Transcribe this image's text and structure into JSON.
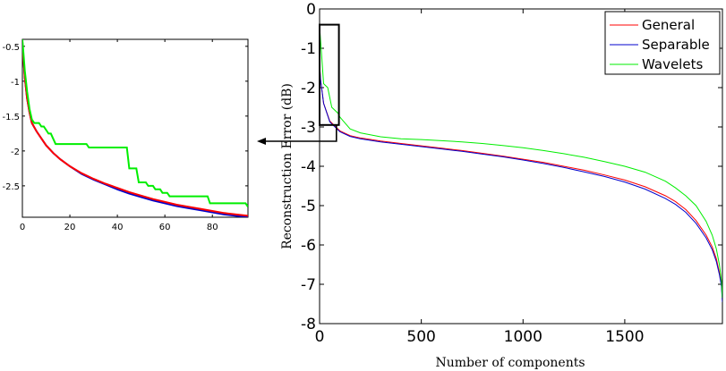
{
  "chart_data": [
    {
      "type": "line",
      "title": "",
      "xlabel": "Number of components",
      "ylabel": "Reconstruction Error (dB)",
      "xlim": [
        0,
        1980
      ],
      "ylim": [
        -8,
        0
      ],
      "xticks": [
        0,
        500,
        1000,
        1500
      ],
      "yticks": [
        0,
        -1,
        -2,
        -3,
        -4,
        -5,
        -6,
        -7,
        -8
      ],
      "legend": "top-right",
      "series": [
        {
          "name": "General",
          "color": "#ff0000",
          "x": [
            0,
            5,
            20,
            50,
            100,
            150,
            200,
            300,
            400,
            500,
            600,
            700,
            800,
            900,
            1000,
            1100,
            1200,
            1300,
            1400,
            1500,
            1600,
            1700,
            1750,
            1800,
            1850,
            1900,
            1930,
            1950,
            1965,
            1975,
            1980
          ],
          "y": [
            -1.4,
            -1.8,
            -2.4,
            -2.85,
            -3.1,
            -3.22,
            -3.28,
            -3.36,
            -3.42,
            -3.48,
            -3.54,
            -3.6,
            -3.67,
            -3.74,
            -3.82,
            -3.9,
            -4.0,
            -4.1,
            -4.22,
            -4.35,
            -4.52,
            -4.75,
            -4.9,
            -5.1,
            -5.38,
            -5.75,
            -6.05,
            -6.35,
            -6.7,
            -7.0,
            -7.4
          ]
        },
        {
          "name": "Separable",
          "color": "#0000cc",
          "x": [
            0,
            5,
            20,
            50,
            100,
            150,
            200,
            300,
            400,
            500,
            600,
            700,
            800,
            900,
            1000,
            1100,
            1200,
            1300,
            1400,
            1500,
            1600,
            1700,
            1750,
            1800,
            1850,
            1900,
            1930,
            1950,
            1965,
            1975,
            1980
          ],
          "y": [
            -1.4,
            -1.8,
            -2.4,
            -2.87,
            -3.12,
            -3.24,
            -3.3,
            -3.38,
            -3.44,
            -3.5,
            -3.56,
            -3.62,
            -3.69,
            -3.76,
            -3.84,
            -3.93,
            -4.03,
            -4.14,
            -4.26,
            -4.4,
            -4.58,
            -4.82,
            -4.97,
            -5.17,
            -5.45,
            -5.82,
            -6.12,
            -6.42,
            -6.75,
            -7.05,
            -7.45
          ]
        },
        {
          "name": "Wavelets",
          "color": "#00ee00",
          "x": [
            0,
            1,
            20,
            40,
            60,
            90,
            100,
            150,
            200,
            300,
            400,
            500,
            600,
            700,
            800,
            900,
            1000,
            1100,
            1200,
            1300,
            1400,
            1500,
            1600,
            1700,
            1750,
            1800,
            1850,
            1900,
            1930,
            1950,
            1965,
            1975,
            1980
          ],
          "y": [
            -0.4,
            -0.5,
            -1.9,
            -2.0,
            -2.5,
            -2.65,
            -2.75,
            -3.05,
            -3.15,
            -3.25,
            -3.3,
            -3.32,
            -3.35,
            -3.38,
            -3.42,
            -3.47,
            -3.53,
            -3.6,
            -3.68,
            -3.77,
            -3.88,
            -4.0,
            -4.15,
            -4.38,
            -4.55,
            -4.75,
            -5.0,
            -5.4,
            -5.75,
            -6.1,
            -6.5,
            -6.9,
            -7.35
          ]
        }
      ]
    },
    {
      "type": "line",
      "title": "",
      "xlabel": "",
      "ylabel": "",
      "xlim": [
        0,
        95
      ],
      "ylim": [
        -2.95,
        -0.4
      ],
      "xticks": [
        0,
        20,
        40,
        60,
        80
      ],
      "yticks": [
        -0.5,
        -1,
        -1.5,
        -2,
        -2.5
      ],
      "series": [
        {
          "color": "#0000cc",
          "x": [
            0,
            1,
            2,
            3,
            4,
            6,
            8,
            10,
            13,
            16,
            20,
            25,
            30,
            35,
            40,
            45,
            50,
            55,
            60,
            65,
            70,
            75,
            80,
            85,
            90,
            95
          ],
          "y": [
            -0.45,
            -0.95,
            -1.25,
            -1.45,
            -1.6,
            -1.72,
            -1.82,
            -1.92,
            -2.03,
            -2.12,
            -2.22,
            -2.33,
            -2.41,
            -2.48,
            -2.55,
            -2.61,
            -2.66,
            -2.71,
            -2.75,
            -2.79,
            -2.82,
            -2.85,
            -2.88,
            -2.91,
            -2.93,
            -2.95
          ]
        },
        {
          "color": "#ff0000",
          "x": [
            0,
            1,
            2,
            3,
            4,
            6,
            8,
            10,
            13,
            16,
            20,
            25,
            30,
            35,
            40,
            45,
            50,
            55,
            60,
            65,
            70,
            75,
            80,
            85,
            90,
            95
          ],
          "y": [
            -0.45,
            -0.95,
            -1.25,
            -1.45,
            -1.6,
            -1.72,
            -1.82,
            -1.92,
            -2.03,
            -2.12,
            -2.22,
            -2.32,
            -2.4,
            -2.47,
            -2.53,
            -2.59,
            -2.64,
            -2.69,
            -2.73,
            -2.77,
            -2.8,
            -2.83,
            -2.86,
            -2.89,
            -2.91,
            -2.93
          ]
        },
        {
          "color": "#00ee00",
          "x": [
            0,
            1,
            2,
            3,
            4,
            5,
            7,
            8,
            9,
            11,
            12,
            14,
            27,
            28,
            44,
            45,
            48,
            49,
            52,
            53,
            55,
            56,
            58,
            59,
            61,
            62,
            78,
            79,
            94,
            95
          ],
          "y": [
            -0.4,
            -0.85,
            -1.15,
            -1.4,
            -1.55,
            -1.6,
            -1.6,
            -1.65,
            -1.65,
            -1.75,
            -1.75,
            -1.9,
            -1.9,
            -1.95,
            -1.95,
            -2.25,
            -2.25,
            -2.45,
            -2.45,
            -2.5,
            -2.5,
            -2.55,
            -2.55,
            -2.6,
            -2.6,
            -2.65,
            -2.65,
            -2.75,
            -2.75,
            -2.8
          ]
        }
      ]
    }
  ]
}
